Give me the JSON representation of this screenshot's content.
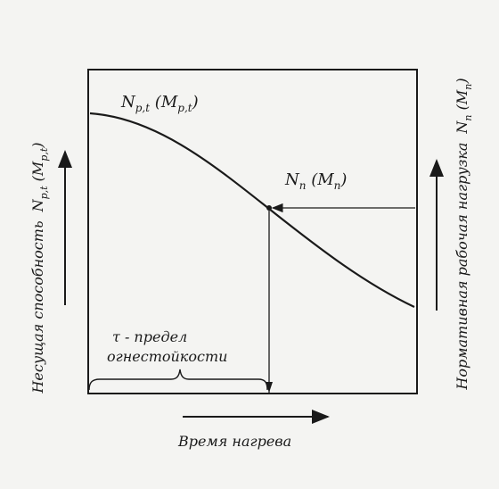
{
  "labels": {
    "curve_main": "N",
    "curve_main_sub": "p,t",
    "curve_main_paren_open": " (M",
    "curve_main_paren_sub": "p,t",
    "curve_main_paren_close": ")",
    "load_main": "N",
    "load_main_sub": "n",
    "load_paren_open": " (M",
    "load_paren_sub": "n",
    "load_paren_close": ")",
    "fire_limit_line1": "τ - предел",
    "fire_limit_line2": "огнестойкости",
    "x_axis": "Время нагрева",
    "y_left": "Несущая способность",
    "y_left_sym": "N",
    "y_left_sym_sub": "p,t",
    "y_left_paren_open": " (M",
    "y_left_paren_sub": "p,t",
    "y_left_paren_close": ")",
    "y_right": "Нормативная рабочая нагрузка",
    "y_right_sym": "N",
    "y_right_sym_sub": "n",
    "y_right_paren_open": " (M",
    "y_right_paren_sub": "n",
    "y_right_paren_close": ")"
  },
  "colors": {
    "ink": "#1a1a1a",
    "paper": "#f4f4f2"
  }
}
